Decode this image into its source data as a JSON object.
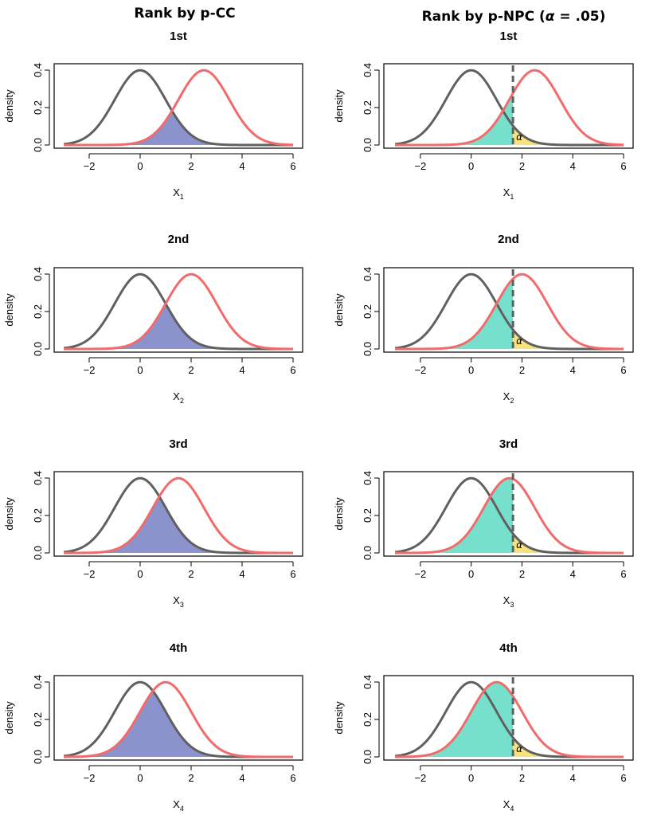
{
  "headers": {
    "left": "Rank by p-CC",
    "right_prefix": "Rank by p-NPC (",
    "right_alpha": "α",
    "right_suffix": " = .05)"
  },
  "colors": {
    "class0_curve": "#606060",
    "class1_curve": "#f26b6b",
    "overlap_fill": "#8a93cc",
    "power_fill": "#77e0cc",
    "alpha_fill": "#f7e37e",
    "threshold_line": "#606060"
  },
  "chart_data": [
    {
      "type": "area",
      "column": "p-CC",
      "title": "1st",
      "xlabel": "X",
      "xsub": "1",
      "ylabel": "density",
      "class0_mean": 0,
      "class1_mean": 2.5,
      "sd": 1,
      "xlim": [
        -3,
        6
      ],
      "ylim": [
        0,
        0.4
      ],
      "xticks": [
        "−2",
        "0",
        "2",
        "4",
        "6"
      ],
      "xtick_values": [
        -2,
        0,
        2,
        4,
        6
      ],
      "yticks": [
        "0.0",
        "0.2",
        "0.4"
      ],
      "ytick_values": [
        0,
        0.2,
        0.4
      ],
      "fill": "overlap"
    },
    {
      "type": "area",
      "column": "p-NPC",
      "title": "1st",
      "xlabel": "X",
      "xsub": "1",
      "ylabel": "density",
      "class0_mean": 0,
      "class1_mean": 2.5,
      "sd": 1,
      "threshold": 1.645,
      "alpha_label": "α",
      "xlim": [
        -3,
        6
      ],
      "ylim": [
        0,
        0.4
      ],
      "xticks": [
        "−2",
        "0",
        "2",
        "4",
        "6"
      ],
      "xtick_values": [
        -2,
        0,
        2,
        4,
        6
      ],
      "yticks": [
        "0.0",
        "0.2",
        "0.4"
      ],
      "ytick_values": [
        0,
        0.2,
        0.4
      ],
      "fill": "threshold"
    },
    {
      "type": "area",
      "column": "p-CC",
      "title": "2nd",
      "xlabel": "X",
      "xsub": "2",
      "ylabel": "density",
      "class0_mean": 0,
      "class1_mean": 2,
      "sd": 1,
      "xlim": [
        -3,
        6
      ],
      "ylim": [
        0,
        0.4
      ],
      "xticks": [
        "−2",
        "0",
        "2",
        "4",
        "6"
      ],
      "xtick_values": [
        -2,
        0,
        2,
        4,
        6
      ],
      "yticks": [
        "0.0",
        "0.2",
        "0.4"
      ],
      "ytick_values": [
        0,
        0.2,
        0.4
      ],
      "fill": "overlap"
    },
    {
      "type": "area",
      "column": "p-NPC",
      "title": "2nd",
      "xlabel": "X",
      "xsub": "2",
      "ylabel": "density",
      "class0_mean": 0,
      "class1_mean": 2,
      "sd": 1,
      "threshold": 1.645,
      "alpha_label": "α",
      "xlim": [
        -3,
        6
      ],
      "ylim": [
        0,
        0.4
      ],
      "xticks": [
        "−2",
        "0",
        "2",
        "4",
        "6"
      ],
      "xtick_values": [
        -2,
        0,
        2,
        4,
        6
      ],
      "yticks": [
        "0.0",
        "0.2",
        "0.4"
      ],
      "ytick_values": [
        0,
        0.2,
        0.4
      ],
      "fill": "threshold"
    },
    {
      "type": "area",
      "column": "p-CC",
      "title": "3rd",
      "xlabel": "X",
      "xsub": "3",
      "ylabel": "density",
      "class0_mean": 0,
      "class1_mean": 1.5,
      "sd": 1,
      "xlim": [
        -3,
        6
      ],
      "ylim": [
        0,
        0.4
      ],
      "xticks": [
        "−2",
        "0",
        "2",
        "4",
        "6"
      ],
      "xtick_values": [
        -2,
        0,
        2,
        4,
        6
      ],
      "yticks": [
        "0.0",
        "0.2",
        "0.4"
      ],
      "ytick_values": [
        0,
        0.2,
        0.4
      ],
      "fill": "overlap"
    },
    {
      "type": "area",
      "column": "p-NPC",
      "title": "3rd",
      "xlabel": "X",
      "xsub": "3",
      "ylabel": "density",
      "class0_mean": 0,
      "class1_mean": 1.5,
      "sd": 1,
      "threshold": 1.645,
      "alpha_label": "α",
      "xlim": [
        -3,
        6
      ],
      "ylim": [
        0,
        0.4
      ],
      "xticks": [
        "−2",
        "0",
        "2",
        "4",
        "6"
      ],
      "xtick_values": [
        -2,
        0,
        2,
        4,
        6
      ],
      "yticks": [
        "0.0",
        "0.2",
        "0.4"
      ],
      "ytick_values": [
        0,
        0.2,
        0.4
      ],
      "fill": "threshold"
    },
    {
      "type": "area",
      "column": "p-CC",
      "title": "4th",
      "xlabel": "X",
      "xsub": "4",
      "ylabel": "density",
      "class0_mean": 0,
      "class1_mean": 1,
      "sd": 1,
      "xlim": [
        -3,
        6
      ],
      "ylim": [
        0,
        0.4
      ],
      "xticks": [
        "−2",
        "0",
        "2",
        "4",
        "6"
      ],
      "xtick_values": [
        -2,
        0,
        2,
        4,
        6
      ],
      "yticks": [
        "0.0",
        "0.2",
        "0.4"
      ],
      "ytick_values": [
        0,
        0.2,
        0.4
      ],
      "fill": "overlap"
    },
    {
      "type": "area",
      "column": "p-NPC",
      "title": "4th",
      "xlabel": "X",
      "xsub": "4",
      "ylabel": "density",
      "class0_mean": 0,
      "class1_mean": 1,
      "sd": 1,
      "threshold": 1.645,
      "alpha_label": "α",
      "xlim": [
        -3,
        6
      ],
      "ylim": [
        0,
        0.4
      ],
      "xticks": [
        "−2",
        "0",
        "2",
        "4",
        "6"
      ],
      "xtick_values": [
        -2,
        0,
        2,
        4,
        6
      ],
      "yticks": [
        "0.0",
        "0.2",
        "0.4"
      ],
      "ytick_values": [
        0,
        0.2,
        0.4
      ],
      "fill": "threshold"
    }
  ]
}
